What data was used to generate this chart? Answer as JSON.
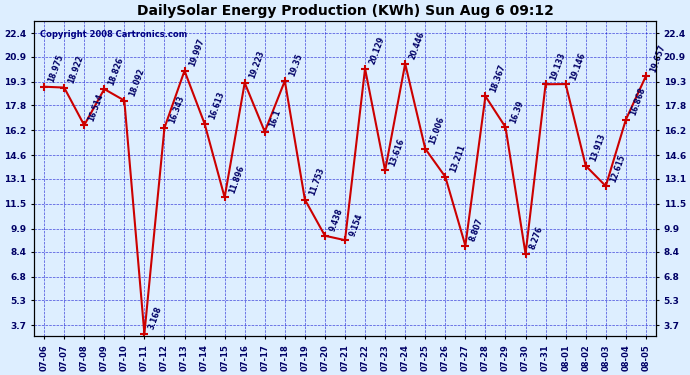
{
  "title": "DailySolar Energy Production (KWh) Sun Aug 6 09:12",
  "copyright": "Copyright 2008 Cartronics.com",
  "dates": [
    "07-06",
    "07-07",
    "07-08",
    "07-09",
    "07-10",
    "07-11",
    "07-12",
    "07-13",
    "07-14",
    "07-15",
    "07-16",
    "07-17",
    "07-18",
    "07-19",
    "07-20",
    "07-21",
    "07-22",
    "07-23",
    "07-24",
    "07-25",
    "07-26",
    "07-27",
    "07-28",
    "07-29",
    "07-30",
    "07-31",
    "08-01",
    "08-02",
    "08-03",
    "08-04",
    "08-05"
  ],
  "values": [
    18.975,
    18.922,
    16.514,
    18.826,
    18.092,
    3.168,
    16.343,
    19.997,
    16.613,
    11.896,
    19.223,
    16.1,
    19.35,
    11.753,
    9.438,
    9.154,
    20.129,
    13.616,
    20.446,
    15.006,
    13.211,
    8.807,
    18.367,
    16.39,
    8.276,
    19.133,
    19.146,
    13.913,
    12.615,
    16.868,
    19.657
  ],
  "yticks": [
    3.7,
    5.3,
    6.8,
    8.4,
    9.9,
    11.5,
    13.1,
    14.6,
    16.2,
    17.8,
    19.3,
    20.9,
    22.4
  ],
  "ylim": [
    3.0,
    23.2
  ],
  "line_color": "#cc0000",
  "marker_color": "#cc0000",
  "bg_color": "#ddeeff",
  "plot_bg": "#ddeeff",
  "grid_color": "#0000cc",
  "text_color": "#000066",
  "title_color": "#000000",
  "copyright_color": "#000080"
}
